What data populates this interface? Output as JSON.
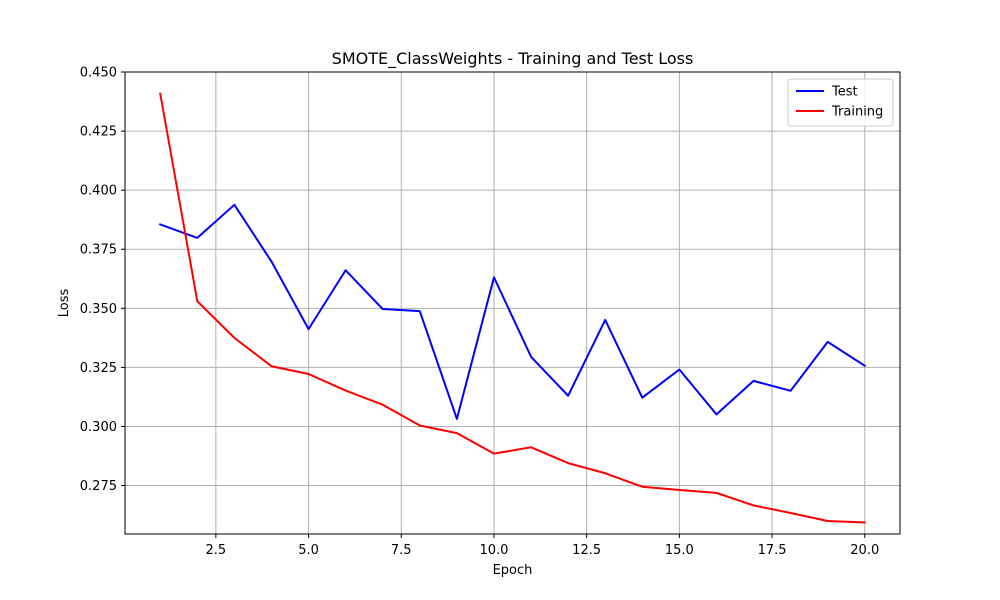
{
  "chart_data": {
    "type": "line",
    "title": "SMOTE_ClassWeights - Training and Test Loss",
    "xlabel": "Epoch",
    "ylabel": "Loss",
    "xlim": [
      0.05,
      20.95
    ],
    "ylim": [
      0.2545,
      0.45
    ],
    "xticks": [
      2.5,
      5.0,
      7.5,
      10.0,
      12.5,
      15.0,
      17.5,
      20.0
    ],
    "xtick_labels": [
      "2.5",
      "5.0",
      "7.5",
      "10.0",
      "12.5",
      "15.0",
      "17.5",
      "20.0"
    ],
    "yticks": [
      0.275,
      0.3,
      0.325,
      0.35,
      0.375,
      0.4,
      0.425,
      0.45
    ],
    "ytick_labels": [
      "0.275",
      "0.300",
      "0.325",
      "0.350",
      "0.375",
      "0.400",
      "0.425",
      "0.450"
    ],
    "grid": true,
    "legend_position": "top-right",
    "x": [
      1,
      2,
      3,
      4,
      5,
      6,
      7,
      8,
      9,
      10,
      11,
      12,
      13,
      14,
      15,
      16,
      17,
      18,
      19,
      20
    ],
    "series": [
      {
        "name": "Test",
        "color": "#0000ff",
        "values": [
          0.3855,
          0.3798,
          0.3938,
          0.3698,
          0.3412,
          0.3661,
          0.3497,
          0.3488,
          0.3032,
          0.3631,
          0.3295,
          0.313,
          0.3451,
          0.3122,
          0.3241,
          0.3051,
          0.3193,
          0.3151,
          0.3358,
          0.3257
        ]
      },
      {
        "name": "Training",
        "color": "#ff0000",
        "values": [
          0.4408,
          0.353,
          0.3375,
          0.3255,
          0.3222,
          0.3152,
          0.3092,
          0.3004,
          0.2972,
          0.2885,
          0.2912,
          0.2845,
          0.2802,
          0.2745,
          0.2731,
          0.2719,
          0.2666,
          0.2634,
          0.26,
          0.2594
        ]
      }
    ]
  }
}
